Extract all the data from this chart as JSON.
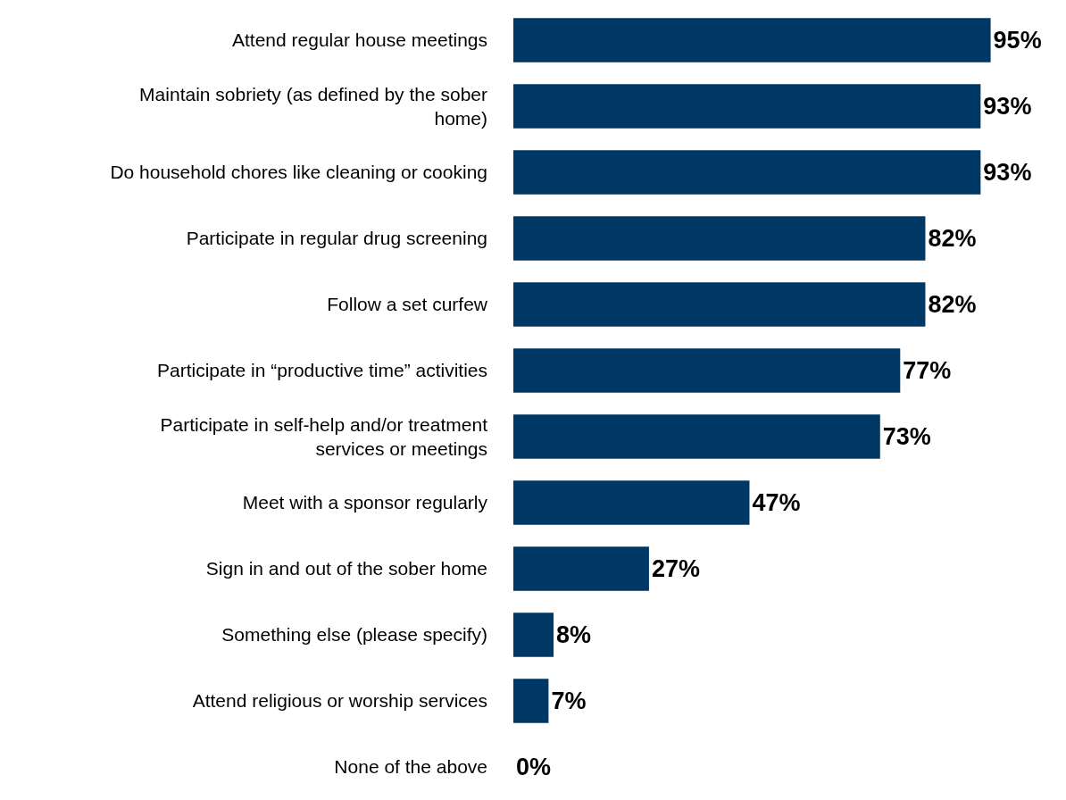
{
  "chart_data": {
    "type": "bar",
    "orientation": "horizontal",
    "categories": [
      "Attend regular house meetings",
      "Maintain sobriety (as defined by the sober home)",
      "Do household chores like cleaning or cooking",
      "Participate in regular drug screening",
      "Follow a set curfew",
      "Participate in “productive time” activities",
      "Participate in self-help and/or treatment services or meetings",
      "Meet with a sponsor regularly",
      "Sign in and out of the sober home",
      "Something else (please specify)",
      "Attend religious or worship services",
      "None of the above"
    ],
    "values": [
      95,
      93,
      93,
      82,
      82,
      77,
      73,
      47,
      27,
      8,
      7,
      0
    ],
    "value_labels": [
      "95%",
      "93%",
      "93%",
      "82%",
      "82%",
      "77%",
      "73%",
      "47%",
      "27%",
      "8%",
      "7%",
      "0%"
    ],
    "color": "#003865",
    "xlim": [
      0,
      110
    ],
    "grid": false,
    "legend": false
  }
}
